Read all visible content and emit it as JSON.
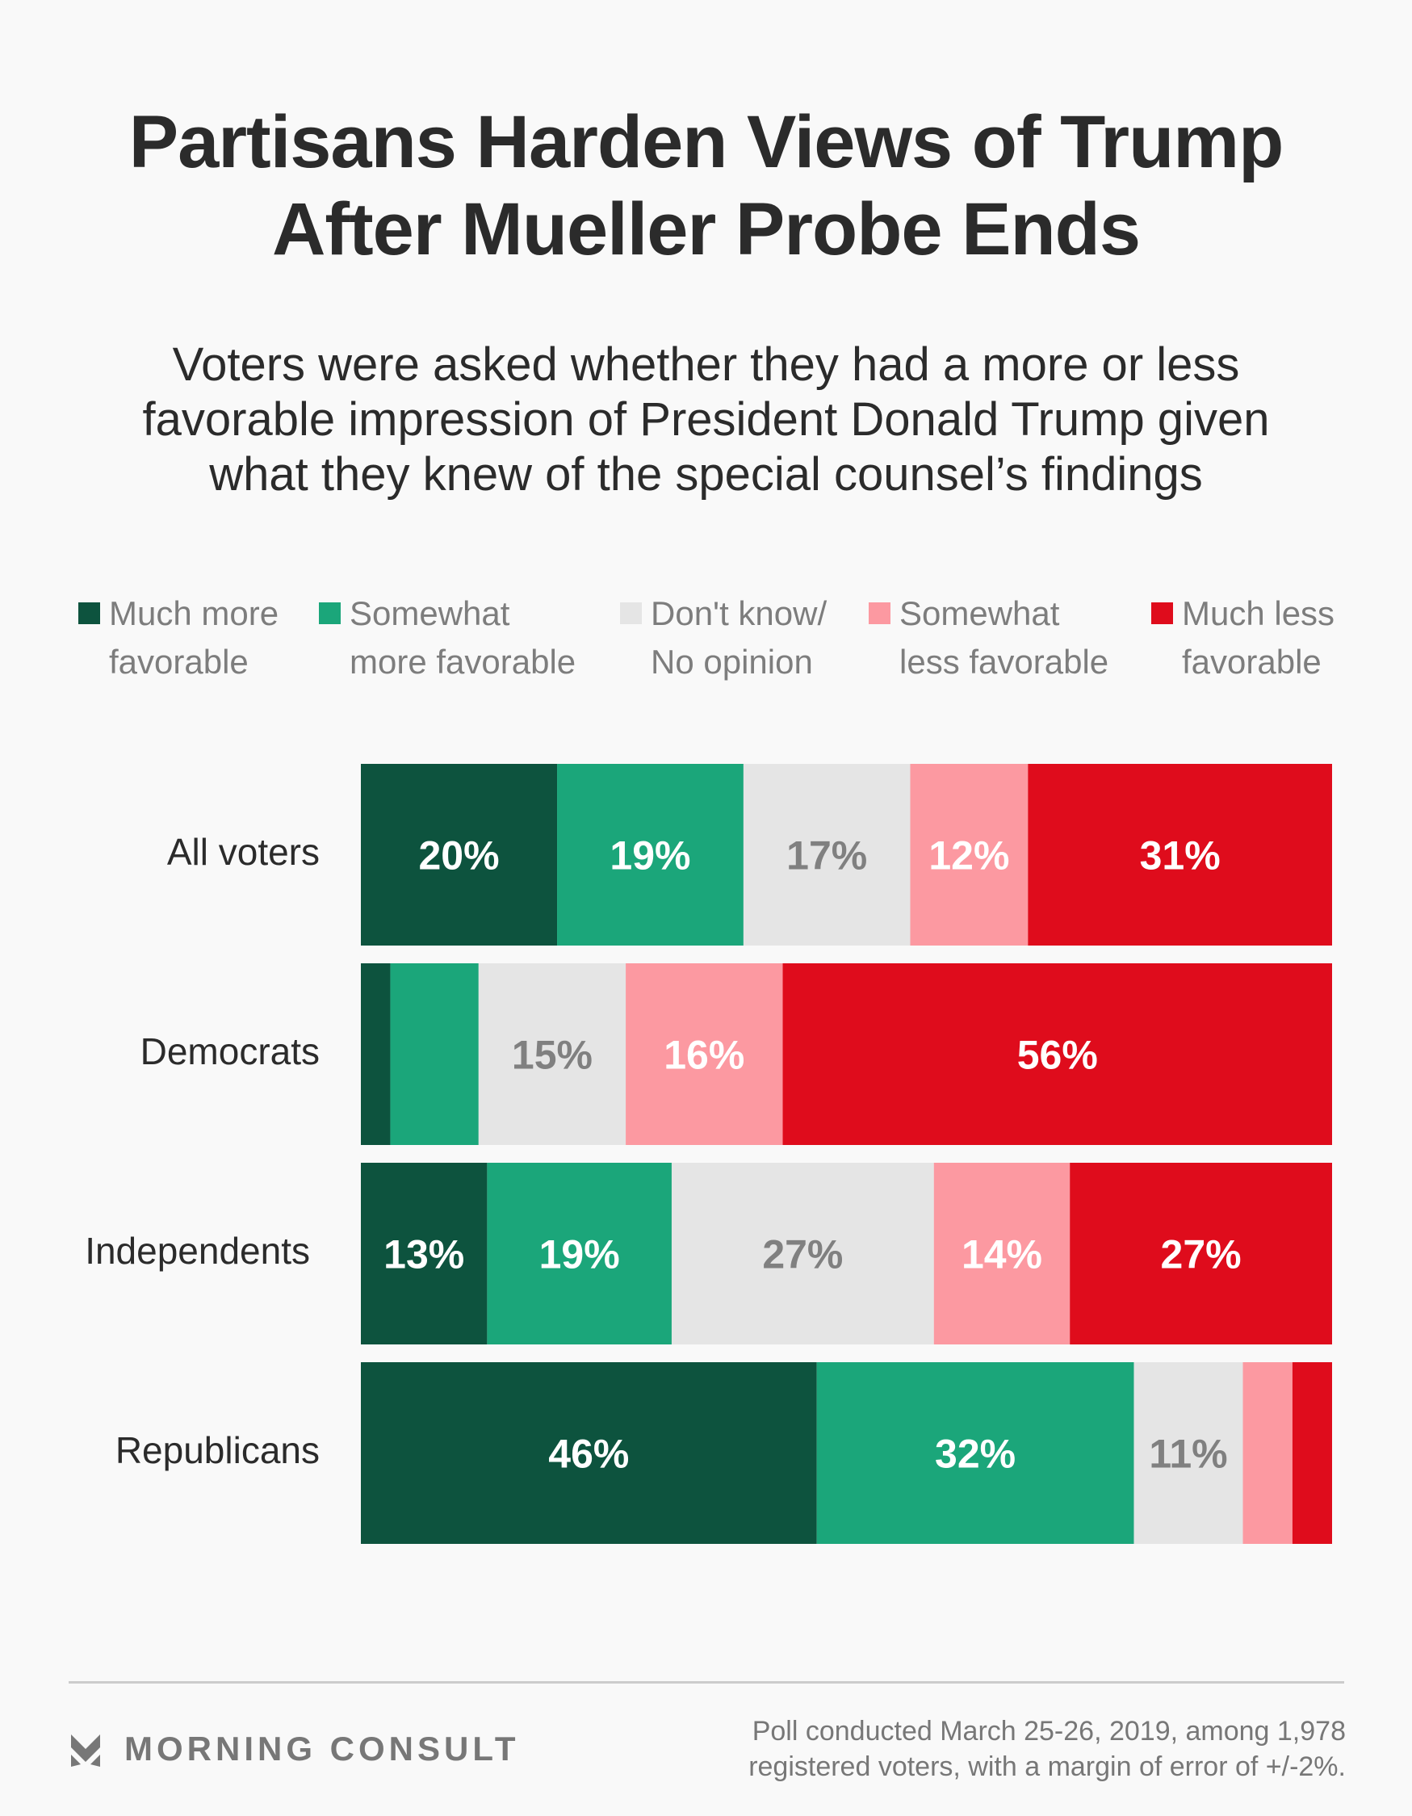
{
  "header": {
    "title_lines": [
      "Partisans Harden Views of Trump",
      "After Mueller Probe Ends"
    ],
    "subtitle_lines": [
      "Voters were asked whether they had a more or less",
      "favorable impression of President Donald Trump given",
      "what they knew of the special counsel’s findings"
    ]
  },
  "legend": [
    {
      "line1": "Much more",
      "line2": "favorable",
      "color": "#0d533e",
      "icon": "square-swatch"
    },
    {
      "line1": "Somewhat",
      "line2": "more favorable",
      "color": "#1ba67a",
      "icon": "square-swatch"
    },
    {
      "line1": "Don't know/",
      "line2": "No opinion",
      "color": "#e5e5e5",
      "icon": "square-swatch"
    },
    {
      "line1": "Somewhat",
      "line2": "less favorable",
      "color": "#fc99a1",
      "icon": "square-swatch"
    },
    {
      "line1": "Much less",
      "line2": "favorable",
      "color": "#df0c1c",
      "icon": "square-swatch"
    }
  ],
  "chart_data": {
    "type": "bar",
    "orientation": "horizontal",
    "stacked": true,
    "normalized": true,
    "title": "Partisans Harden Views of Trump After Mueller Probe Ends",
    "subtitle": "Voters were asked whether they had a more or less favorable impression of President Donald Trump given what they knew of the special counsel’s findings",
    "xlabel": "",
    "ylabel": "",
    "xlim": [
      0,
      100
    ],
    "grid": false,
    "legend_position": "top",
    "categories": [
      "All voters",
      "Democrats",
      "Independents",
      "Republicans"
    ],
    "series": [
      {
        "name": "Much more favorable",
        "color": "#0d533e",
        "label_color": "#ffffff",
        "values": [
          20,
          3,
          13,
          46
        ],
        "labels": [
          "20%",
          "",
          "13%",
          "46%"
        ]
      },
      {
        "name": "Somewhat more favorable",
        "color": "#1ba67a",
        "label_color": "#ffffff",
        "values": [
          19,
          9,
          19,
          32
        ],
        "labels": [
          "19%",
          "",
          "19%",
          "32%"
        ]
      },
      {
        "name": "Don't know/No opinion",
        "color": "#e5e5e5",
        "label_color": "#808080",
        "values": [
          17,
          15,
          27,
          11
        ],
        "labels": [
          "17%",
          "15%",
          "27%",
          "11%"
        ]
      },
      {
        "name": "Somewhat less favorable",
        "color": "#fc99a1",
        "label_color": "#ffffff",
        "values": [
          12,
          16,
          14,
          5
        ],
        "labels": [
          "12%",
          "16%",
          "14%",
          ""
        ]
      },
      {
        "name": "Much less favorable",
        "color": "#df0c1c",
        "label_color": "#ffffff",
        "values": [
          31,
          56,
          27,
          4
        ],
        "labels": [
          "31%",
          "56%",
          "27%",
          ""
        ]
      }
    ]
  },
  "footer": {
    "brand": "MORNING CONSULT",
    "brand_icon": "morning-consult-chevron-logo",
    "note_lines": [
      "Poll conducted March 25-26, 2019, among 1,978",
      "registered voters, with a margin of error of +/-2%."
    ]
  }
}
